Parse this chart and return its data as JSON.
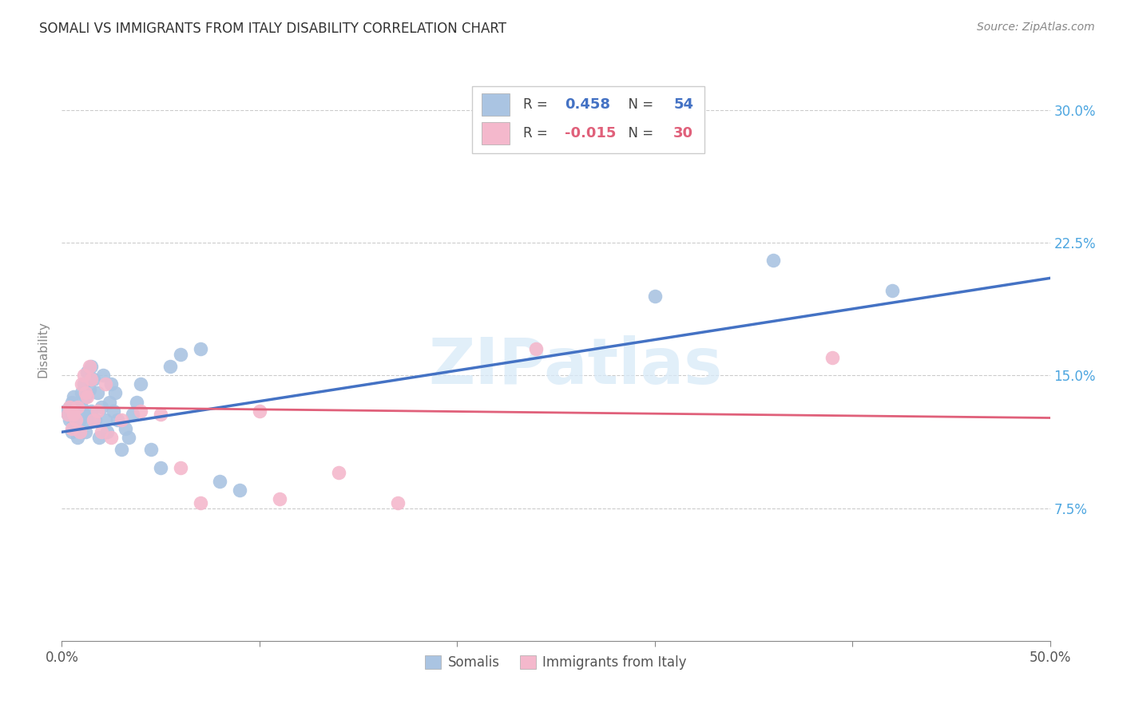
{
  "title": "SOMALI VS IMMIGRANTS FROM ITALY DISABILITY CORRELATION CHART",
  "source": "Source: ZipAtlas.com",
  "ylabel": "Disability",
  "watermark": "ZIPatlas",
  "xlim": [
    0.0,
    0.5
  ],
  "ylim": [
    0.0,
    0.33
  ],
  "ytick_vals": [
    0.075,
    0.15,
    0.225,
    0.3
  ],
  "ytick_labels": [
    "7.5%",
    "15.0%",
    "22.5%",
    "30.0%"
  ],
  "xtick_vals": [
    0.0,
    0.1,
    0.2,
    0.3,
    0.4,
    0.5
  ],
  "grid_color": "#cccccc",
  "background_color": "#ffffff",
  "somali_color": "#aac4e2",
  "somali_edge_color": "#aac4e2",
  "somali_line_color": "#4472c4",
  "italy_color": "#f4b8cc",
  "italy_edge_color": "#f4b8cc",
  "italy_line_color": "#e0607a",
  "R_somali": 0.458,
  "N_somali": 54,
  "R_italy": -0.015,
  "N_italy": 30,
  "legend_label_somali": "Somalis",
  "legend_label_italy": "Immigrants from Italy",
  "blue_line_x0": 0.0,
  "blue_line_y0": 0.118,
  "blue_line_x1": 0.5,
  "blue_line_y1": 0.205,
  "pink_line_x0": 0.0,
  "pink_line_y0": 0.132,
  "pink_line_x1": 0.5,
  "pink_line_y1": 0.126,
  "somali_x": [
    0.002,
    0.003,
    0.004,
    0.004,
    0.005,
    0.005,
    0.006,
    0.006,
    0.007,
    0.007,
    0.008,
    0.008,
    0.009,
    0.009,
    0.01,
    0.01,
    0.011,
    0.011,
    0.012,
    0.012,
    0.013,
    0.013,
    0.014,
    0.015,
    0.015,
    0.016,
    0.017,
    0.018,
    0.019,
    0.02,
    0.021,
    0.022,
    0.023,
    0.024,
    0.025,
    0.026,
    0.027,
    0.028,
    0.03,
    0.032,
    0.034,
    0.036,
    0.038,
    0.04,
    0.045,
    0.05,
    0.055,
    0.06,
    0.07,
    0.08,
    0.09,
    0.3,
    0.36,
    0.42
  ],
  "somali_y": [
    0.13,
    0.128,
    0.125,
    0.132,
    0.118,
    0.135,
    0.122,
    0.138,
    0.12,
    0.125,
    0.115,
    0.13,
    0.128,
    0.125,
    0.14,
    0.132,
    0.145,
    0.128,
    0.138,
    0.118,
    0.152,
    0.125,
    0.142,
    0.155,
    0.13,
    0.148,
    0.125,
    0.14,
    0.115,
    0.132,
    0.15,
    0.125,
    0.118,
    0.135,
    0.145,
    0.13,
    0.14,
    0.125,
    0.108,
    0.12,
    0.115,
    0.128,
    0.135,
    0.145,
    0.108,
    0.098,
    0.155,
    0.162,
    0.165,
    0.09,
    0.085,
    0.195,
    0.215,
    0.198
  ],
  "italy_x": [
    0.003,
    0.004,
    0.005,
    0.006,
    0.007,
    0.008,
    0.009,
    0.01,
    0.011,
    0.012,
    0.013,
    0.014,
    0.015,
    0.016,
    0.018,
    0.02,
    0.022,
    0.025,
    0.03,
    0.04,
    0.05,
    0.06,
    0.07,
    0.1,
    0.11,
    0.14,
    0.17,
    0.24,
    0.3,
    0.39
  ],
  "italy_y": [
    0.128,
    0.132,
    0.12,
    0.128,
    0.125,
    0.132,
    0.118,
    0.145,
    0.15,
    0.14,
    0.138,
    0.155,
    0.148,
    0.125,
    0.13,
    0.118,
    0.145,
    0.115,
    0.125,
    0.13,
    0.128,
    0.098,
    0.078,
    0.13,
    0.08,
    0.095,
    0.078,
    0.165,
    0.295,
    0.16
  ]
}
